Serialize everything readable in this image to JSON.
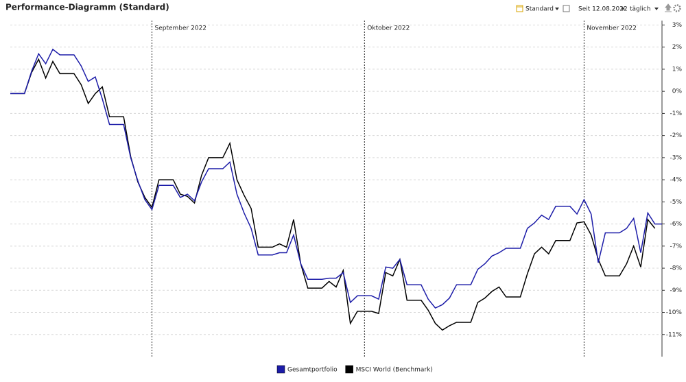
{
  "toolbar": {
    "view": "Standard",
    "period": "Seit 12.08.2022",
    "interval": "täglich"
  },
  "chart_data": {
    "type": "line",
    "title": "Performance-Diagramm (Standard)",
    "categories": [
      null,
      null,
      null,
      null,
      null,
      null,
      null,
      null,
      null,
      null,
      null,
      null,
      null,
      null,
      null,
      null,
      null,
      null,
      null,
      null,
      "September 2022",
      null,
      null,
      null,
      null,
      null,
      null,
      null,
      null,
      null,
      null,
      null,
      null,
      null,
      null,
      null,
      null,
      null,
      null,
      null,
      null,
      null,
      null,
      null,
      null,
      null,
      null,
      null,
      null,
      null,
      "Oktober 2022",
      null,
      null,
      null,
      null,
      null,
      null,
      null,
      null,
      null,
      null,
      null,
      null,
      null,
      null,
      null,
      null,
      null,
      null,
      null,
      null,
      null,
      null,
      null,
      null,
      null,
      null,
      null,
      null,
      null,
      null,
      "November 2022",
      null,
      null,
      null,
      null,
      null,
      null,
      null,
      null,
      null,
      null,
      null
    ],
    "series": [
      {
        "name": "Gesamtportfolio",
        "color": "#1c1ca8",
        "values": [
          -0.1,
          -0.1,
          -0.1,
          0.9,
          1.7,
          1.25,
          1.9,
          1.65,
          1.65,
          1.65,
          1.15,
          0.45,
          0.65,
          -0.35,
          -1.5,
          -1.5,
          -1.5,
          -3.0,
          -4.05,
          -4.9,
          -5.35,
          -4.25,
          -4.25,
          -4.25,
          -4.8,
          -4.65,
          -4.95,
          -4.1,
          -3.5,
          -3.5,
          -3.5,
          -3.2,
          -4.65,
          -5.5,
          -6.2,
          -7.4,
          -7.4,
          -7.4,
          -7.3,
          -7.3,
          -6.5,
          -7.8,
          -8.5,
          -8.5,
          -8.5,
          -8.45,
          -8.45,
          -8.2,
          -9.55,
          -9.25,
          -9.25,
          -9.25,
          -9.4,
          -7.95,
          -8.0,
          -7.6,
          -8.75,
          -8.75,
          -8.75,
          -9.4,
          -9.8,
          -9.65,
          -9.35,
          -8.75,
          -8.75,
          -8.75,
          -8.05,
          -7.8,
          -7.45,
          -7.3,
          -7.1,
          -7.1,
          -7.1,
          -6.2,
          -5.95,
          -5.6,
          -5.8,
          -5.2,
          -5.2,
          -5.2,
          -5.55,
          -4.9,
          -5.55,
          -7.75,
          -6.4,
          -6.4,
          -6.4,
          -6.2,
          -5.75,
          -7.3,
          -5.5,
          -6.0,
          -6.0
        ]
      },
      {
        "name": "MSCI World (Benchmark)",
        "color": "#000000",
        "values": [
          -0.1,
          -0.1,
          -0.1,
          0.85,
          1.45,
          0.6,
          1.35,
          0.8,
          0.8,
          0.8,
          0.3,
          -0.55,
          -0.1,
          0.2,
          -1.15,
          -1.15,
          -1.15,
          -2.95,
          -4.1,
          -4.8,
          -5.25,
          -4.0,
          -4.0,
          -4.0,
          -4.65,
          -4.75,
          -5.05,
          -3.8,
          -3.0,
          -3.0,
          -3.0,
          -2.35,
          -4.0,
          -4.7,
          -5.3,
          -7.05,
          -7.05,
          -7.05,
          -6.9,
          -7.05,
          -5.8,
          -7.8,
          -8.9,
          -8.9,
          -8.9,
          -8.6,
          -8.85,
          -8.1,
          -10.5,
          -9.95,
          -9.95,
          -9.95,
          -10.05,
          -8.2,
          -8.35,
          -7.6,
          -9.45,
          -9.45,
          -9.45,
          -9.9,
          -10.5,
          -10.8,
          -10.6,
          -10.45,
          -10.45,
          -10.45,
          -9.55,
          -9.35,
          -9.05,
          -8.85,
          -9.3,
          -9.3,
          -9.3,
          -8.25,
          -7.35,
          -7.05,
          -7.35,
          -6.75,
          -6.75,
          -6.75,
          -5.95,
          -5.9,
          -6.5,
          -7.6,
          -8.35,
          -8.35,
          -8.35,
          -7.8,
          -7.0,
          -7.95,
          -5.8,
          -6.2,
          null
        ]
      }
    ],
    "ylim": [
      -12,
      3.2
    ],
    "yticks": [
      {
        "value": 3,
        "label": "3%"
      },
      {
        "value": 2,
        "label": "2%"
      },
      {
        "value": 1,
        "label": "1%"
      },
      {
        "value": 0,
        "label": "0%"
      },
      {
        "value": -1,
        "label": "-1%"
      },
      {
        "value": -2,
        "label": "-2%"
      },
      {
        "value": -3,
        "label": "-3%"
      },
      {
        "value": -4,
        "label": "-4%"
      },
      {
        "value": -5,
        "label": "-5%"
      },
      {
        "value": -6,
        "label": "-6%"
      },
      {
        "value": -7,
        "label": "-7%"
      },
      {
        "value": -8,
        "label": "-8%"
      },
      {
        "value": -9,
        "label": "-9%"
      },
      {
        "value": -10,
        "label": "-10%"
      },
      {
        "value": -11,
        "label": "-11%"
      }
    ],
    "grid": true,
    "legend": "bottom"
  }
}
